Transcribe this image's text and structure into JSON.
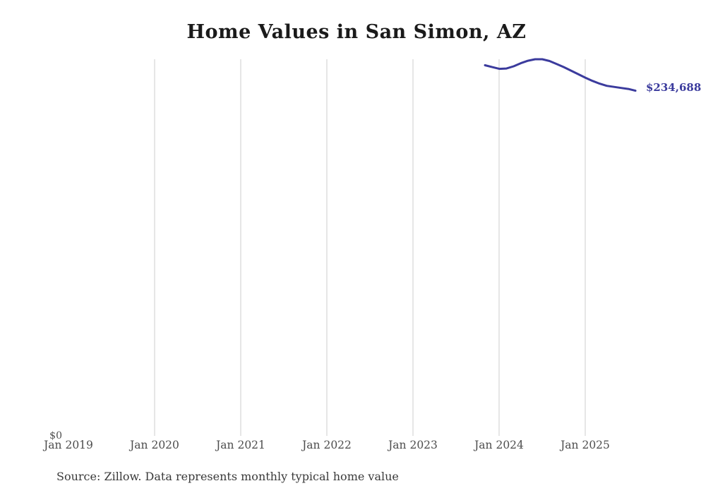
{
  "title": "Home Values in San Simon, AZ",
  "source_note": "Source: Zillow. Data represents monthly typical home value",
  "y_zero_label": "$0",
  "end_value_label": "$234,688",
  "colors": {
    "line": "#3b3b9d",
    "end_label": "#3b3b9d",
    "gridline": "#cccccc",
    "tick_text": "#4d4d4d",
    "title_text": "#1a1a1a",
    "source_text": "#3a3a3a"
  },
  "chart_data": {
    "type": "line",
    "title": "Home Values in San Simon, AZ",
    "xlabel": "",
    "ylabel": "",
    "x_tick_labels": [
      "Jan 2019",
      "Jan 2020",
      "Jan 2021",
      "Jan 2022",
      "Jan 2023",
      "Jan 2024",
      "Jan 2025"
    ],
    "gridlines_at": [
      "Jan 2020",
      "Jan 2021",
      "Jan 2022",
      "Jan 2023",
      "Jan 2024",
      "Jan 2025"
    ],
    "grid": "vertical-only",
    "ylim": [
      0,
      256100
    ],
    "y_axis_labels_visible": [
      "$0"
    ],
    "legend": "none",
    "end_annotation": "$234,688",
    "series": [
      {
        "name": "Monthly typical home value",
        "x": [
          "Nov 2023",
          "Dec 2023",
          "Jan 2024",
          "Feb 2024",
          "Mar 2024",
          "Apr 2024",
          "May 2024",
          "Jun 2024",
          "Jul 2024",
          "Aug 2024",
          "Sep 2024",
          "Oct 2024",
          "Nov 2024",
          "Dec 2024",
          "Jan 2025",
          "Feb 2025",
          "Mar 2025",
          "Apr 2025",
          "May 2025",
          "Jun 2025",
          "Jul 2025",
          "Aug 2025"
        ],
        "values": [
          252000,
          250800,
          249600,
          249800,
          251300,
          253400,
          255100,
          256100,
          256100,
          254900,
          252900,
          250800,
          248400,
          246000,
          243600,
          241400,
          239500,
          238000,
          237300,
          236600,
          235900,
          234688
        ]
      }
    ]
  }
}
